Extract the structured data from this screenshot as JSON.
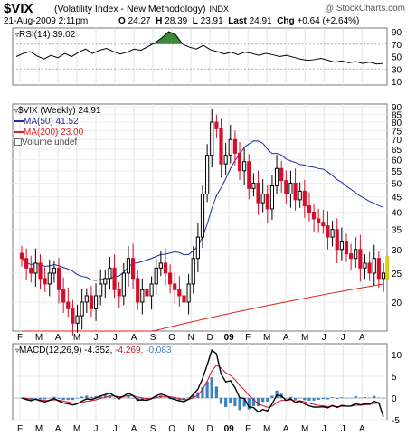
{
  "header": {
    "symbol": "$VIX",
    "name": "(Volatility Index - New Methodology)",
    "exchange": "INDX",
    "credit": "@ StockCharts.com",
    "date": "21-Aug-2009 2:11pm",
    "open_label": "O",
    "open": "24.27",
    "high_label": "H",
    "high": "28.39",
    "low_label": "L",
    "low": "23.91",
    "last_label": "Last",
    "last": "24.91",
    "chg_label": "Chg",
    "chg": "+0.64 (+2.64%)"
  },
  "rsi": {
    "label": "RSI(14) 39.02",
    "ticks": [
      "90",
      "70",
      "50",
      "30",
      "10"
    ],
    "values": [
      50,
      55,
      58,
      51,
      46,
      52,
      48,
      55,
      50,
      57,
      62,
      55,
      60,
      63,
      58,
      54,
      57,
      62,
      60,
      66,
      72,
      80,
      90,
      85,
      70,
      65,
      62,
      68,
      61,
      58,
      54,
      57,
      53,
      57,
      55,
      52,
      55,
      53,
      50,
      52,
      49,
      46,
      44,
      45,
      47,
      44,
      41,
      43,
      40,
      42,
      39,
      41,
      38,
      39
    ]
  },
  "price": {
    "legend_series": "$VIX (Weekly) 24.91",
    "legend_ma50": "MA(50) 41.52",
    "legend_ma200": "MA(200) 23.00",
    "legend_volume": "Volume undef",
    "ticks": [
      "90",
      "85",
      "80",
      "75",
      "70",
      "65",
      "60",
      "55",
      "50",
      "45",
      "40",
      "35",
      "30",
      "25",
      "20"
    ]
  },
  "months": [
    "F",
    "M",
    "A",
    "M",
    "J",
    "J",
    "A",
    "S",
    "O",
    "N",
    "D",
    "09",
    "F",
    "M",
    "A",
    "M",
    "J",
    "J",
    "A"
  ],
  "macd": {
    "label": "MACD(12,26,9) -4.352, -4.269, -0.083",
    "label_main": "MACD(12,26,9) -4.352,",
    "label_signal": "-4.269,",
    "label_hist": "-0.083",
    "ticks": [
      "10",
      "5",
      "0",
      "-5"
    ]
  },
  "colors": {
    "up": "#000000",
    "down": "#d40f2a",
    "ma50": "#1f2b9c",
    "ma200": "#e02020",
    "rsi_fill": "#3a8a3a",
    "hist": "#3b82c4",
    "last_marker": "#f0d000"
  },
  "chart_data": {
    "type": "candlestick",
    "title": "$VIX (Volatility Index - New Methodology)",
    "interval": "weekly",
    "y_range": [
      16,
      92
    ],
    "y_scale": "log",
    "x": [
      "2008-02",
      "2008-03",
      "2008-04",
      "2008-05",
      "2008-06",
      "2008-07",
      "2008-08",
      "2008-09",
      "2008-10",
      "2008-11",
      "2008-12",
      "2009-01",
      "2009-02",
      "2009-03",
      "2009-04",
      "2009-05",
      "2009-06",
      "2009-07",
      "2009-08"
    ],
    "weekly_close": [
      28,
      26,
      25,
      27,
      24,
      23,
      25,
      26,
      22,
      20,
      19,
      17,
      18,
      20,
      21,
      19,
      21,
      23,
      24,
      26,
      22,
      21,
      25,
      28,
      24,
      20,
      22,
      21,
      23,
      26,
      27,
      25,
      23,
      22,
      21,
      20,
      23,
      28,
      33,
      46,
      62,
      80,
      76,
      58,
      62,
      70,
      63,
      55,
      59,
      48,
      50,
      43,
      46,
      41,
      49,
      56,
      51,
      46,
      50,
      44,
      47,
      42,
      40,
      38,
      37,
      36,
      33,
      35,
      30,
      32,
      29,
      28,
      30,
      26,
      27,
      25,
      28,
      24,
      25
    ],
    "ma50_last": 41.52,
    "ma200_last": 23.0,
    "macd_last": -4.352,
    "signal_last": -4.269,
    "histogram_last": -0.083
  }
}
